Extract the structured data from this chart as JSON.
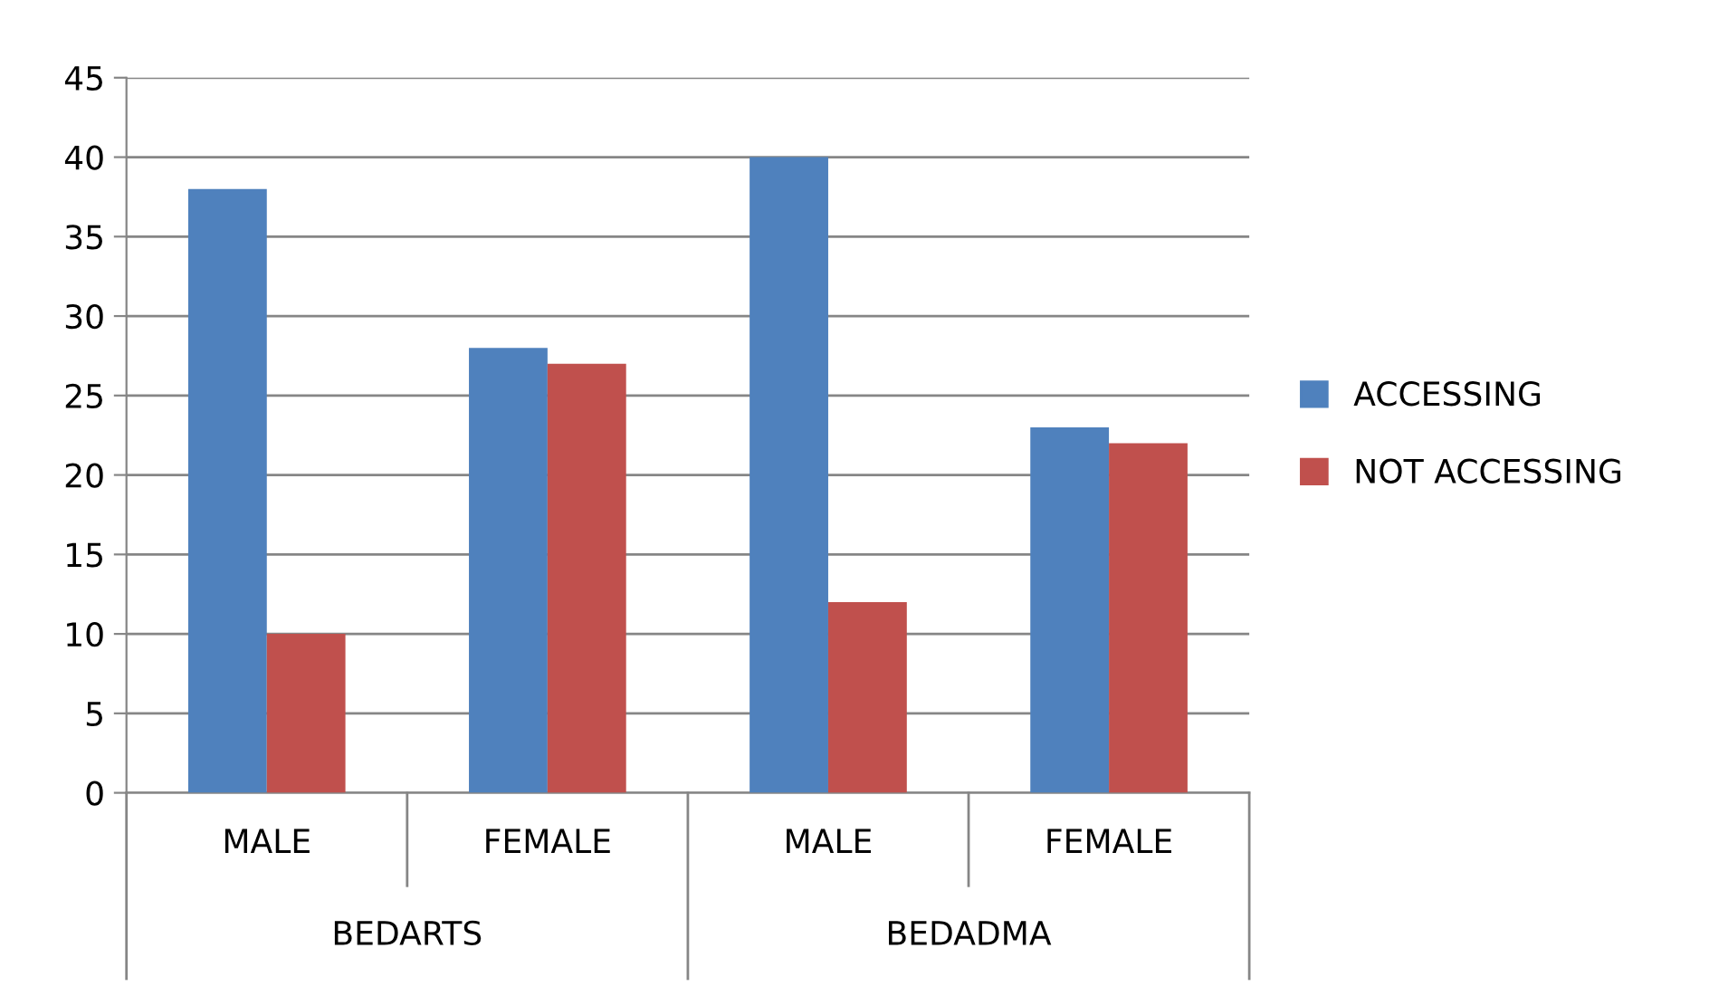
{
  "chart_data": {
    "type": "bar",
    "categories": [
      "MALE",
      "FEMALE",
      "MALE",
      "FEMALE"
    ],
    "series": [
      {
        "name": "ACCESSING",
        "color": "#4f81bd",
        "values": [
          38,
          28,
          40,
          23
        ]
      },
      {
        "name": "NOT ACCESSING",
        "color": "#c0504d",
        "values": [
          10,
          27,
          12,
          22
        ]
      }
    ],
    "annotations": [
      "BEDARTS",
      "BEDADMA"
    ],
    "ylim": [
      0,
      45
    ],
    "yticks": [
      0,
      5,
      10,
      15,
      20,
      25,
      30,
      35,
      40,
      45
    ],
    "grid": "y",
    "legend": "right"
  }
}
